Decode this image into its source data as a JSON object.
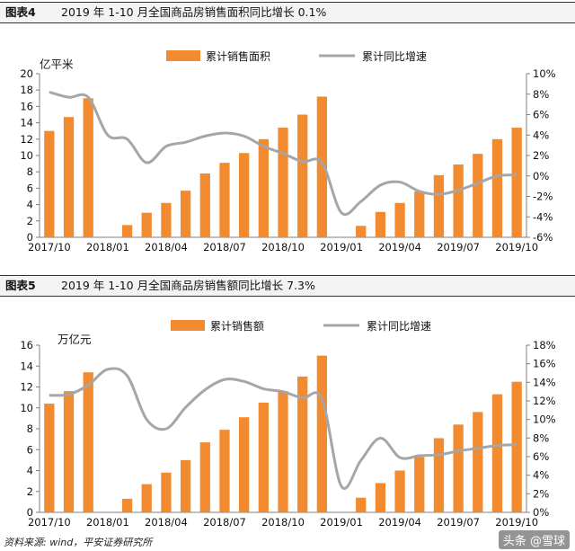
{
  "figures": [
    {
      "number": "图表4",
      "title": "2019 年 1-10 月全国商品房销售面积同比增长 0.1%",
      "left_unit": "亿平米"
    },
    {
      "number": "图表5",
      "title": "2019 年 1-10 月全国商品房销售额同比增长 7.3%",
      "left_unit": "万亿元"
    }
  ],
  "source": "资料来源: wind，平安证券研究所",
  "watermark": "头条 @雪球",
  "colors": {
    "bar": "#F28A30",
    "line": "#A6A6A6",
    "axis": "#7f7f7f"
  },
  "chart_data": [
    {
      "type": "bar",
      "x": [
        "2017/10",
        "2017/11",
        "2017/12",
        "2018/01",
        "2018/02",
        "2018/03",
        "2018/04",
        "2018/05",
        "2018/06",
        "2018/07",
        "2018/08",
        "2018/09",
        "2018/10",
        "2018/11",
        "2018/12",
        "2019/01",
        "2019/02",
        "2019/03",
        "2019/04",
        "2019/05",
        "2019/06",
        "2019/07",
        "2019/08",
        "2019/09",
        "2019/10"
      ],
      "x_tick_labels": [
        "2017/10",
        "2018/01",
        "2018/04",
        "2018/07",
        "2018/10",
        "2019/01",
        "2019/04",
        "2019/07",
        "2019/10"
      ],
      "series": [
        {
          "name": "累计销售面积",
          "type": "bar",
          "axis": "left",
          "values": [
            13.0,
            14.7,
            17.0,
            null,
            1.5,
            3.0,
            4.2,
            5.7,
            7.8,
            9.1,
            10.3,
            12.0,
            13.4,
            15.0,
            17.2,
            null,
            1.4,
            3.1,
            4.2,
            5.6,
            7.6,
            8.9,
            10.2,
            12.0,
            13.4
          ]
        },
        {
          "name": "累计同比增速",
          "type": "line",
          "axis": "right",
          "values": [
            8.2,
            7.7,
            7.7,
            4.0,
            3.6,
            1.3,
            2.9,
            3.3,
            3.9,
            4.2,
            3.9,
            2.9,
            2.2,
            1.4,
            1.3,
            -3.6,
            -2.5,
            -0.9,
            -0.6,
            -1.5,
            -1.8,
            -1.4,
            -0.7,
            0.0,
            0.1
          ]
        }
      ],
      "y_left": {
        "min": 0,
        "max": 20,
        "step": 2
      },
      "y_right": {
        "min": -6,
        "max": 10,
        "step": 2,
        "format": "percent"
      },
      "y_left_tick_labels": [
        "0",
        "2",
        "4",
        "6",
        "8",
        "10",
        "12",
        "14",
        "16",
        "18",
        "20"
      ],
      "y_right_tick_labels": [
        "-6%",
        "-4%",
        "-2%",
        "0%",
        "2%",
        "4%",
        "6%",
        "8%",
        "10%"
      ],
      "legend": "top"
    },
    {
      "type": "bar",
      "x": [
        "2017/10",
        "2017/11",
        "2017/12",
        "2018/01",
        "2018/02",
        "2018/03",
        "2018/04",
        "2018/05",
        "2018/06",
        "2018/07",
        "2018/08",
        "2018/09",
        "2018/10",
        "2018/11",
        "2018/12",
        "2019/01",
        "2019/02",
        "2019/03",
        "2019/04",
        "2019/05",
        "2019/06",
        "2019/07",
        "2019/08",
        "2019/09",
        "2019/10"
      ],
      "x_tick_labels": [
        "2017/10",
        "2018/01",
        "2018/04",
        "2018/07",
        "2018/10",
        "2019/01",
        "2019/04",
        "2019/07",
        "2019/10"
      ],
      "series": [
        {
          "name": "累计销售额",
          "type": "bar",
          "axis": "left",
          "values": [
            10.4,
            11.6,
            13.4,
            null,
            1.3,
            2.7,
            3.8,
            5.0,
            6.7,
            7.9,
            9.1,
            10.5,
            11.6,
            13.0,
            15.0,
            null,
            1.4,
            2.8,
            4.0,
            5.3,
            7.1,
            8.4,
            9.6,
            11.3,
            12.5
          ]
        },
        {
          "name": "累计同比增速",
          "type": "line",
          "axis": "right",
          "values": [
            12.6,
            12.7,
            13.7,
            15.4,
            14.7,
            10.0,
            9.0,
            11.3,
            13.2,
            14.3,
            14.1,
            13.3,
            13.0,
            12.3,
            12.2,
            2.8,
            5.6,
            8.0,
            5.9,
            6.1,
            6.2,
            6.6,
            6.9,
            7.2,
            7.3
          ]
        }
      ],
      "y_left": {
        "min": 0,
        "max": 16,
        "step": 2
      },
      "y_right": {
        "min": 0,
        "max": 18,
        "step": 2,
        "format": "percent"
      },
      "y_left_tick_labels": [
        "0",
        "2",
        "4",
        "6",
        "8",
        "10",
        "12",
        "14",
        "16"
      ],
      "y_right_tick_labels": [
        "0%",
        "2%",
        "4%",
        "6%",
        "8%",
        "10%",
        "12%",
        "14%",
        "16%",
        "18%"
      ],
      "legend": "top"
    }
  ]
}
